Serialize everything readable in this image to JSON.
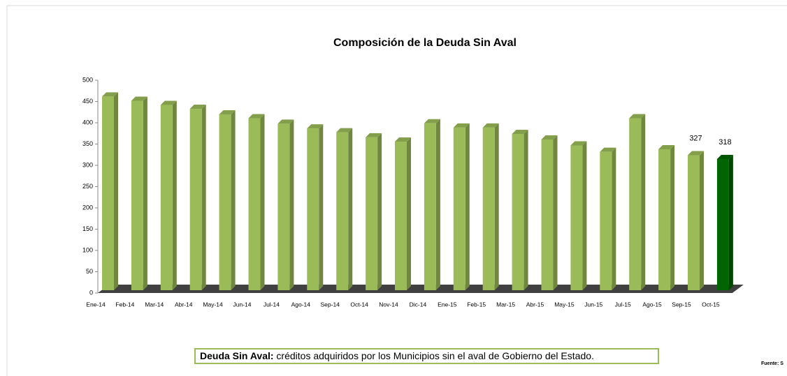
{
  "chart_data": {
    "type": "bar3d",
    "title": "Composición de la Deuda Sin Aval",
    "categories": [
      "Ene-14",
      "Feb-14",
      "Mar-14",
      "Abr-14",
      "May-14",
      "Jun-14",
      "Jul-14",
      "Ago-14",
      "Sep-14",
      "Oct-14",
      "Nov-14",
      "Dic-14",
      "Ene-15",
      "Feb-15",
      "Mar-15",
      "Abr-15",
      "May-15",
      "Jun-15",
      "Jul-15",
      "Ago-15",
      "Sep-15",
      "Oct-15"
    ],
    "values": [
      465,
      455,
      445,
      436,
      423,
      414,
      401,
      390,
      381,
      369,
      359,
      402,
      392,
      392,
      377,
      364,
      350,
      335,
      414,
      341,
      327,
      318
    ],
    "value_labels": [
      null,
      null,
      null,
      null,
      null,
      null,
      null,
      null,
      null,
      null,
      null,
      null,
      null,
      null,
      null,
      null,
      null,
      null,
      null,
      null,
      "327",
      "318"
    ],
    "colors": [
      "#9bbb59",
      "#9bbb59",
      "#9bbb59",
      "#9bbb59",
      "#9bbb59",
      "#9bbb59",
      "#9bbb59",
      "#9bbb59",
      "#9bbb59",
      "#9bbb59",
      "#9bbb59",
      "#9bbb59",
      "#9bbb59",
      "#9bbb59",
      "#9bbb59",
      "#9bbb59",
      "#9bbb59",
      "#9bbb59",
      "#9bbb59",
      "#9bbb59",
      "#9bbb59",
      "#006400"
    ],
    "ylim": [
      0,
      500
    ],
    "yticks": [
      0,
      50,
      100,
      150,
      200,
      250,
      300,
      350,
      400,
      450,
      500
    ],
    "note_label": "Deuda Sin Aval:",
    "note_text": " créditos adquiridos por los Municipios sin el aval de Gobierno del Estado.",
    "source": "Fuente: S"
  }
}
